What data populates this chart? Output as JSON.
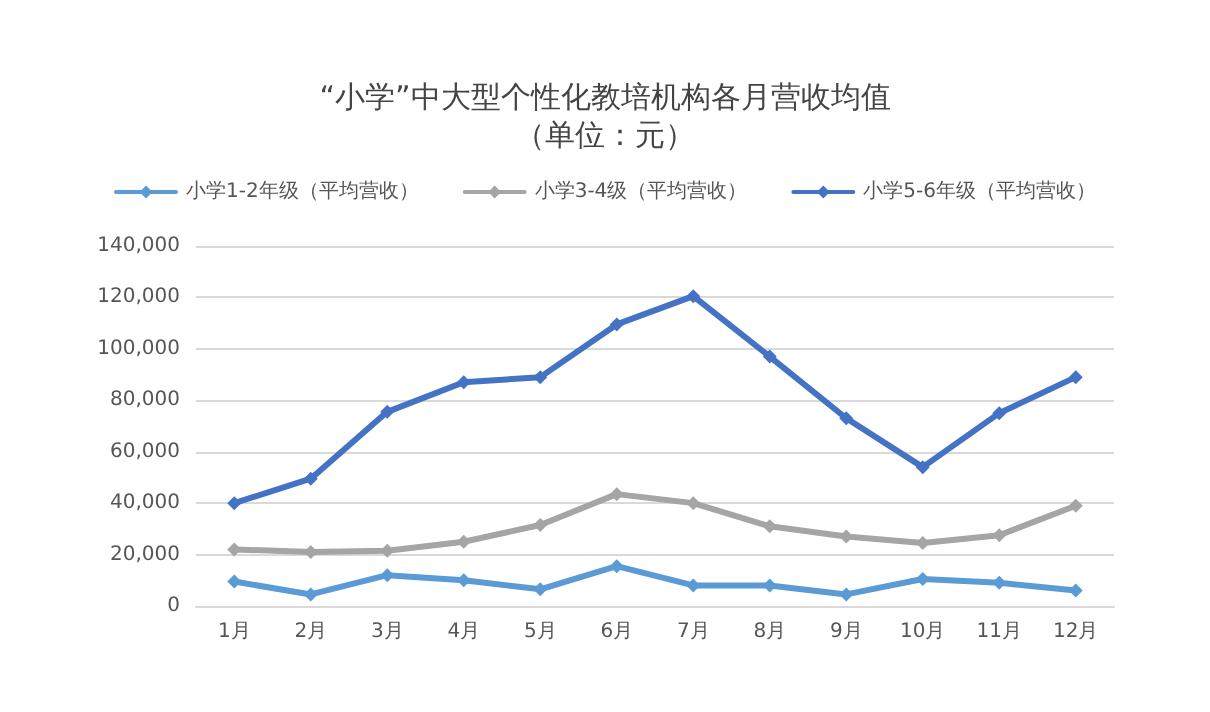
{
  "chart_data": {
    "type": "line",
    "title": "“小学”中大型个性化教培机构各月营收均值",
    "subtitle": "（单位：元）",
    "categories": [
      "1月",
      "2月",
      "3月",
      "4月",
      "5月",
      "6月",
      "7月",
      "8月",
      "9月",
      "10月",
      "11月",
      "12月"
    ],
    "series": [
      {
        "name": "小学1-2年级（平均营收）",
        "color": "#5b9bd5",
        "values": [
          9500,
          4500,
          12000,
          10000,
          6500,
          15500,
          8000,
          8000,
          4500,
          10500,
          9000,
          6000
        ]
      },
      {
        "name": "小学3-4级（平均营收）",
        "color": "#a5a5a5",
        "values": [
          22000,
          21000,
          21500,
          25000,
          31500,
          43500,
          40000,
          31000,
          27000,
          24500,
          27500,
          39000
        ]
      },
      {
        "name": "小学5-6年级（平均营收）",
        "color": "#4472c4",
        "values": [
          40000,
          49500,
          75500,
          87000,
          89000,
          109500,
          120500,
          97000,
          73000,
          54000,
          75000,
          89000
        ]
      }
    ],
    "ylim": [
      0,
      140000
    ],
    "yticks": [
      0,
      {
        "value": 20000,
        "label": "20,000"
      },
      {
        "value": 40000,
        "label": "40,000"
      },
      {
        "value": 60000,
        "label": "60,000"
      },
      {
        "value": 80000,
        "label": "80,000"
      },
      {
        "value": 100000,
        "label": "100,000"
      },
      {
        "value": 120000,
        "label": "120,000"
      },
      {
        "value": 140000,
        "label": "140,000"
      }
    ],
    "grid": "y",
    "legend": "top",
    "marker": "diamond",
    "line_style": "solid"
  }
}
